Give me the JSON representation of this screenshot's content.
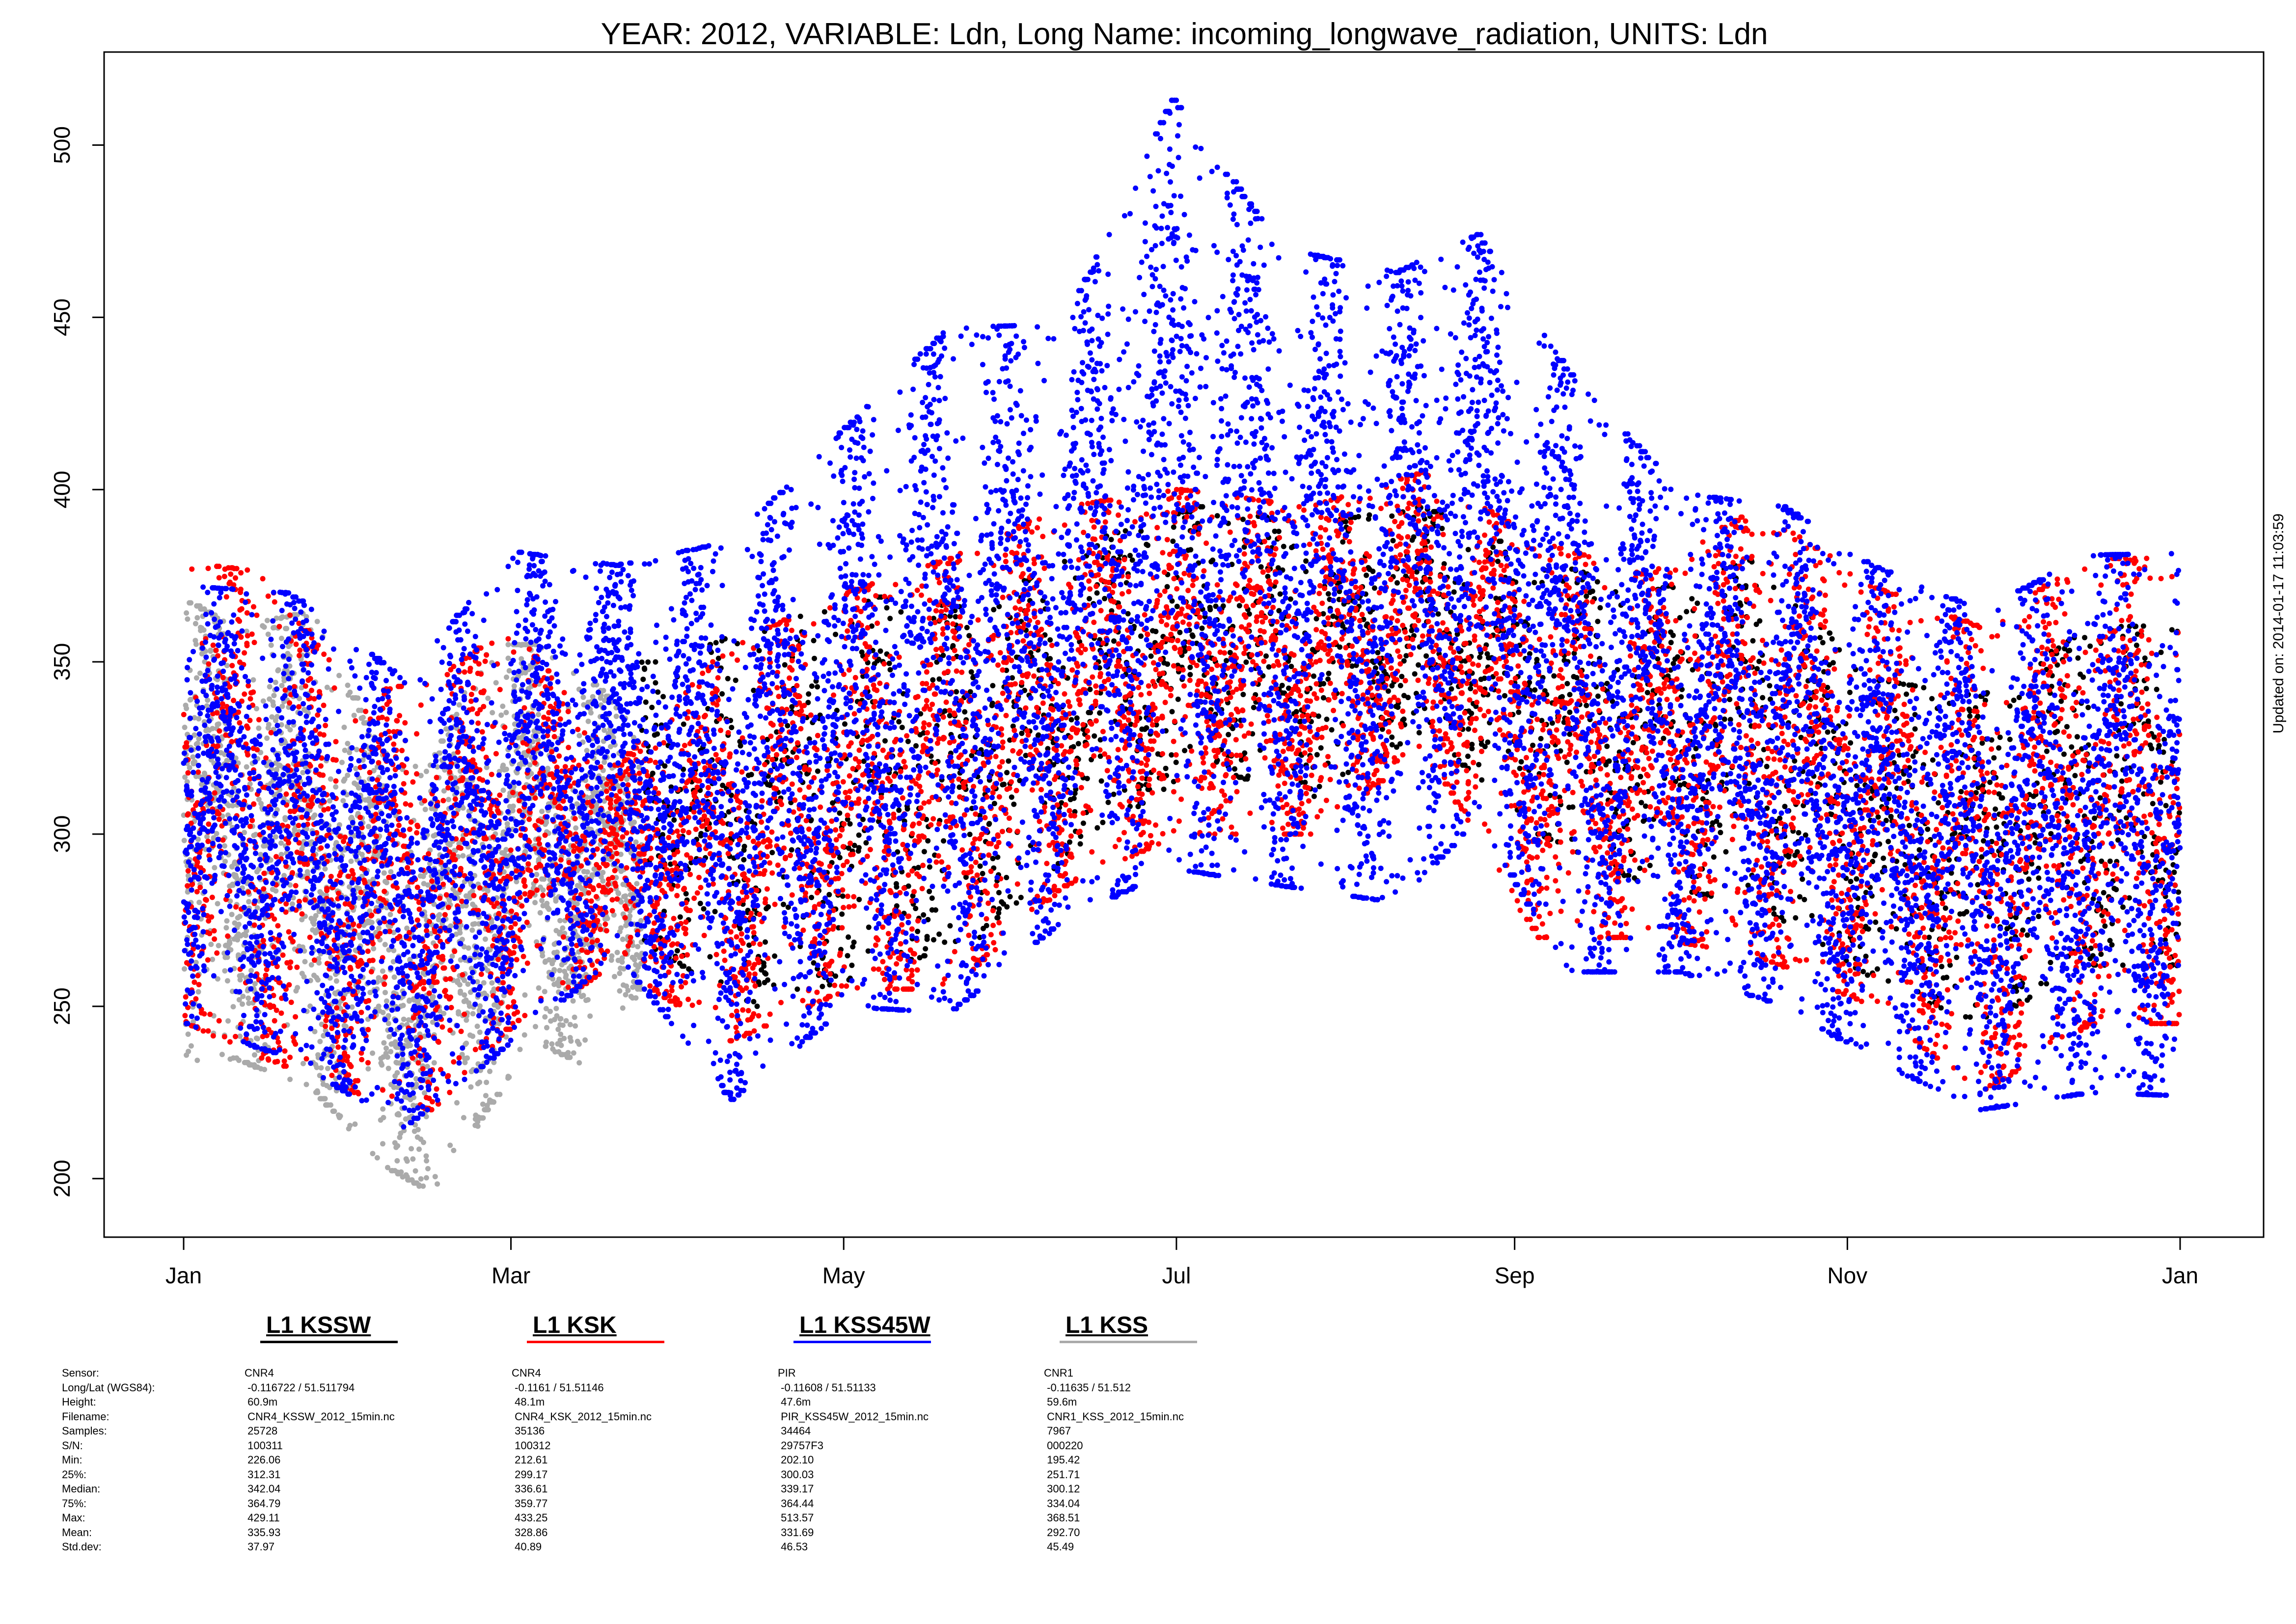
{
  "chart_data": {
    "type": "scatter",
    "title": "YEAR: 2012, VARIABLE: Ldn, Long Name: incoming_longwave_radiation, UNITS: Ldn",
    "updated": "Updated on: 2014-01-17 11:03:59",
    "xlim": [
      "2012-01-01",
      "2012-12-31"
    ],
    "ylim": [
      183,
      527
    ],
    "x_ticks": [
      {
        "label": "Jan",
        "date": "2012-01-01"
      },
      {
        "label": "Mar",
        "date": "2012-03-01"
      },
      {
        "label": "May",
        "date": "2012-05-01"
      },
      {
        "label": "Jul",
        "date": "2012-07-01"
      },
      {
        "label": "Sep",
        "date": "2012-09-01"
      },
      {
        "label": "Nov",
        "date": "2012-11-01"
      },
      {
        "label": "Jan",
        "date": "2013-01-01"
      }
    ],
    "y_ticks": [
      200,
      250,
      300,
      350,
      400,
      450,
      500
    ],
    "grid": false,
    "legend_position": "bottom",
    "series": [
      {
        "name": "L1 KSSW",
        "color": "#000000",
        "sensor": "CNR4",
        "longlat": "-0.116722 / 51.511794",
        "height": "60.9m",
        "filename": "CNR4_KSSW_2012_15min.nc",
        "samples": "25728",
        "sn": "100311",
        "min": "226.06",
        "p25": "312.31",
        "median": "342.04",
        "p75": "364.79",
        "max": "429.11",
        "mean": "335.93",
        "std": "37.97",
        "active_range": [
          "2012-03-25",
          "2012-12-31"
        ],
        "values": [
          {
            "date": "2012-03-28",
            "min": 265,
            "max": 350
          },
          {
            "date": "2012-04-15",
            "min": 250,
            "max": 360
          },
          {
            "date": "2012-05-10",
            "min": 262,
            "max": 370
          },
          {
            "date": "2012-05-25",
            "min": 270,
            "max": 365
          },
          {
            "date": "2012-06-15",
            "min": 300,
            "max": 385
          },
          {
            "date": "2012-07-05",
            "min": 320,
            "max": 395
          },
          {
            "date": "2012-07-25",
            "min": 310,
            "max": 390
          },
          {
            "date": "2012-08-15",
            "min": 330,
            "max": 395
          },
          {
            "date": "2012-09-05",
            "min": 300,
            "max": 380
          },
          {
            "date": "2012-09-25",
            "min": 285,
            "max": 370
          },
          {
            "date": "2012-10-15",
            "min": 280,
            "max": 380
          },
          {
            "date": "2012-11-05",
            "min": 258,
            "max": 345
          },
          {
            "date": "2012-11-25",
            "min": 245,
            "max": 340
          },
          {
            "date": "2012-12-15",
            "min": 262,
            "max": 360
          }
        ]
      },
      {
        "name": "L1 KSK",
        "color": "#ff0000",
        "sensor": "CNR4",
        "longlat": "-0.1161 / 51.51146",
        "height": "48.1m",
        "filename": "CNR4_KSK_2012_15min.nc",
        "samples": "35136",
        "sn": "100312",
        "min": "212.61",
        "p25": "299.17",
        "median": "336.61",
        "p75": "359.77",
        "max": "433.25",
        "mean": "328.86",
        "std": "40.89",
        "active_range": [
          "2012-01-01",
          "2012-12-31"
        ],
        "values": [
          {
            "date": "2012-01-01",
            "min": 245,
            "max": 379
          },
          {
            "date": "2012-01-15",
            "min": 235,
            "max": 376
          },
          {
            "date": "2012-02-01",
            "min": 225,
            "max": 340
          },
          {
            "date": "2012-02-15",
            "min": 220,
            "max": 345
          },
          {
            "date": "2012-03-01",
            "min": 245,
            "max": 360
          },
          {
            "date": "2012-03-20",
            "min": 262,
            "max": 320
          },
          {
            "date": "2012-04-10",
            "min": 240,
            "max": 355
          },
          {
            "date": "2012-05-01",
            "min": 255,
            "max": 370
          },
          {
            "date": "2012-05-20",
            "min": 255,
            "max": 380
          },
          {
            "date": "2012-06-10",
            "min": 285,
            "max": 395
          },
          {
            "date": "2012-07-01",
            "min": 300,
            "max": 400
          },
          {
            "date": "2012-07-25",
            "min": 300,
            "max": 395
          },
          {
            "date": "2012-08-15",
            "min": 325,
            "max": 405
          },
          {
            "date": "2012-09-05",
            "min": 270,
            "max": 385
          },
          {
            "date": "2012-09-25",
            "min": 270,
            "max": 375
          },
          {
            "date": "2012-10-15",
            "min": 265,
            "max": 395
          },
          {
            "date": "2012-11-05",
            "min": 250,
            "max": 372
          },
          {
            "date": "2012-11-25",
            "min": 225,
            "max": 360
          },
          {
            "date": "2012-12-15",
            "min": 245,
            "max": 380
          }
        ]
      },
      {
        "name": "L1 KSS45W",
        "color": "#0000ff",
        "sensor": "PIR",
        "longlat": "-0.11608 / 51.51133",
        "height": "47.6m",
        "filename": "PIR_KSS45W_2012_15min.nc",
        "samples": "34464",
        "sn": "29757F3",
        "min": "202.10",
        "p25": "300.03",
        "median": "339.17",
        "p75": "364.44",
        "max": "513.57",
        "mean": "331.69",
        "std": "46.53",
        "active_range": [
          "2012-01-01",
          "2012-12-31"
        ],
        "values": [
          {
            "date": "2012-01-01",
            "min": 245,
            "max": 372
          },
          {
            "date": "2012-01-20",
            "min": 235,
            "max": 370
          },
          {
            "date": "2012-02-10",
            "min": 215,
            "max": 345
          },
          {
            "date": "2012-03-01",
            "min": 240,
            "max": 382
          },
          {
            "date": "2012-03-20",
            "min": 265,
            "max": 378
          },
          {
            "date": "2012-04-10",
            "min": 223,
            "max": 385
          },
          {
            "date": "2012-05-01",
            "min": 250,
            "max": 418
          },
          {
            "date": "2012-05-20",
            "min": 248,
            "max": 447
          },
          {
            "date": "2012-06-10",
            "min": 275,
            "max": 448
          },
          {
            "date": "2012-06-30",
            "min": 290,
            "max": 513
          },
          {
            "date": "2012-07-20",
            "min": 285,
            "max": 470
          },
          {
            "date": "2012-08-10",
            "min": 280,
            "max": 463
          },
          {
            "date": "2012-08-25",
            "min": 305,
            "max": 474
          },
          {
            "date": "2012-09-10",
            "min": 260,
            "max": 435
          },
          {
            "date": "2012-10-01",
            "min": 260,
            "max": 399
          },
          {
            "date": "2012-10-20",
            "min": 250,
            "max": 395
          },
          {
            "date": "2012-11-05",
            "min": 235,
            "max": 378
          },
          {
            "date": "2012-11-25",
            "min": 220,
            "max": 365
          },
          {
            "date": "2012-12-15",
            "min": 225,
            "max": 381
          }
        ]
      },
      {
        "name": "L1 KSS",
        "color": "#aaaaaa",
        "sensor": "CNR1",
        "longlat": "-0.11635 / 51.512",
        "height": "59.6m",
        "filename": "CNR1_KSS_2012_15min.nc",
        "samples": "7967",
        "sn": "000220",
        "min": "195.42",
        "p25": "251.71",
        "median": "300.12",
        "p75": "334.04",
        "max": "368.51",
        "mean": "292.70",
        "std": "45.49",
        "active_range": [
          "2012-01-01",
          "2012-03-24"
        ],
        "values": [
          {
            "date": "2012-01-01",
            "min": 232,
            "max": 368
          },
          {
            "date": "2012-01-10",
            "min": 235,
            "max": 360
          },
          {
            "date": "2012-01-25",
            "min": 225,
            "max": 365
          },
          {
            "date": "2012-02-05",
            "min": 205,
            "max": 325
          },
          {
            "date": "2012-02-15",
            "min": 196,
            "max": 320
          },
          {
            "date": "2012-02-25",
            "min": 220,
            "max": 355
          },
          {
            "date": "2012-03-05",
            "min": 240,
            "max": 355
          },
          {
            "date": "2012-03-15",
            "min": 232,
            "max": 345
          },
          {
            "date": "2012-03-24",
            "min": 255,
            "max": 330
          }
        ]
      }
    ]
  },
  "metadata_labels": [
    "Sensor:",
    "Long/Lat (WGS84):",
    "Height:",
    "Filename:",
    "Samples:",
    "S/N:",
    "Min:",
    "25%:",
    "Median:",
    "75%:",
    "Max:",
    "Mean:",
    "Std.dev:"
  ]
}
